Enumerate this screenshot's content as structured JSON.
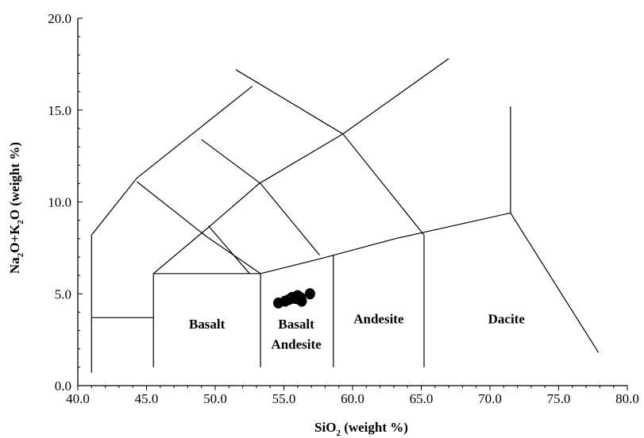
{
  "chart_data": {
    "type": "scatter",
    "title": "",
    "xlabel_main": "SiO",
    "xlabel_sub": "2",
    "xlabel_rest": " (weight %)",
    "ylabel_parts": [
      "Na",
      "2",
      "O+K",
      "2",
      "O (weight %)"
    ],
    "xlim": [
      40,
      80
    ],
    "ylim": [
      0,
      20
    ],
    "x_ticks": [
      40,
      45,
      50,
      55,
      60,
      65,
      70,
      75,
      80
    ],
    "x_tick_labels": [
      "40.0",
      "45.0",
      "50.0",
      "55.0",
      "60.0",
      "65.0",
      "70.0",
      "75.0",
      "80.0"
    ],
    "y_ticks": [
      0,
      5,
      10,
      15,
      20
    ],
    "y_tick_labels": [
      "0.0",
      "5.0",
      "10.0",
      "15.0",
      "20.0"
    ],
    "x_minor_step": 1,
    "y_minor_step": 1,
    "grid": false,
    "series": [
      {
        "x": [
          54.6,
          55.1,
          55.4,
          55.6,
          55.8,
          56.0,
          56.1,
          56.2,
          56.3,
          56.9
        ],
        "y": [
          4.5,
          4.6,
          4.7,
          4.8,
          4.75,
          4.9,
          4.7,
          4.8,
          4.6,
          5.0
        ]
      }
    ],
    "boundaries": [
      [
        [
          41,
          0.7
        ],
        [
          41,
          8.2
        ],
        [
          44.3,
          11.3
        ],
        [
          52.7,
          16.3
        ]
      ],
      [
        [
          41,
          3.7
        ],
        [
          45.5,
          3.7
        ]
      ],
      [
        [
          45.5,
          1
        ],
        [
          45.5,
          6.1
        ],
        [
          49.8,
          8.8
        ],
        [
          53.2,
          11
        ],
        [
          59.3,
          13.7
        ],
        [
          67,
          17.8
        ]
      ],
      [
        [
          45.5,
          6.1
        ],
        [
          53.3,
          6.1
        ],
        [
          57.6,
          6.9
        ],
        [
          63.1,
          8
        ],
        [
          71.5,
          9.4
        ]
      ],
      [
        [
          53.3,
          1
        ],
        [
          53.3,
          6.1
        ]
      ],
      [
        [
          58.6,
          1
        ],
        [
          58.6,
          7.1
        ]
      ],
      [
        [
          65.2,
          1
        ],
        [
          65.2,
          8.2
        ]
      ],
      [
        [
          71.5,
          15.2
        ],
        [
          71.5,
          9.4
        ],
        [
          77.9,
          1.8
        ]
      ],
      [
        [
          45.5,
          6.1
        ],
        [
          45.5,
          6.1
        ]
      ],
      [
        [
          44.3,
          11.1
        ],
        [
          49.4,
          8.1
        ],
        [
          53.3,
          6.1
        ]
      ],
      [
        [
          49,
          13.4
        ],
        [
          53.3,
          11
        ],
        [
          57.6,
          7.1
        ]
      ],
      [
        [
          51.5,
          17.2
        ],
        [
          59.3,
          13.7
        ],
        [
          65.2,
          8.2
        ]
      ],
      [
        [
          49.5,
          8.7
        ],
        [
          52.5,
          6.1
        ]
      ]
    ],
    "field_labels": [
      {
        "text": "Basalt",
        "x": 49.4,
        "y": 3.1
      },
      {
        "text": "Basalt",
        "x": 55.9,
        "y": 3.1
      },
      {
        "text": "Andesite",
        "x": 55.9,
        "y": 2.0
      },
      {
        "text": "Andesite",
        "x": 61.9,
        "y": 3.4
      },
      {
        "text": "Dacite",
        "x": 71.2,
        "y": 3.4
      }
    ]
  }
}
